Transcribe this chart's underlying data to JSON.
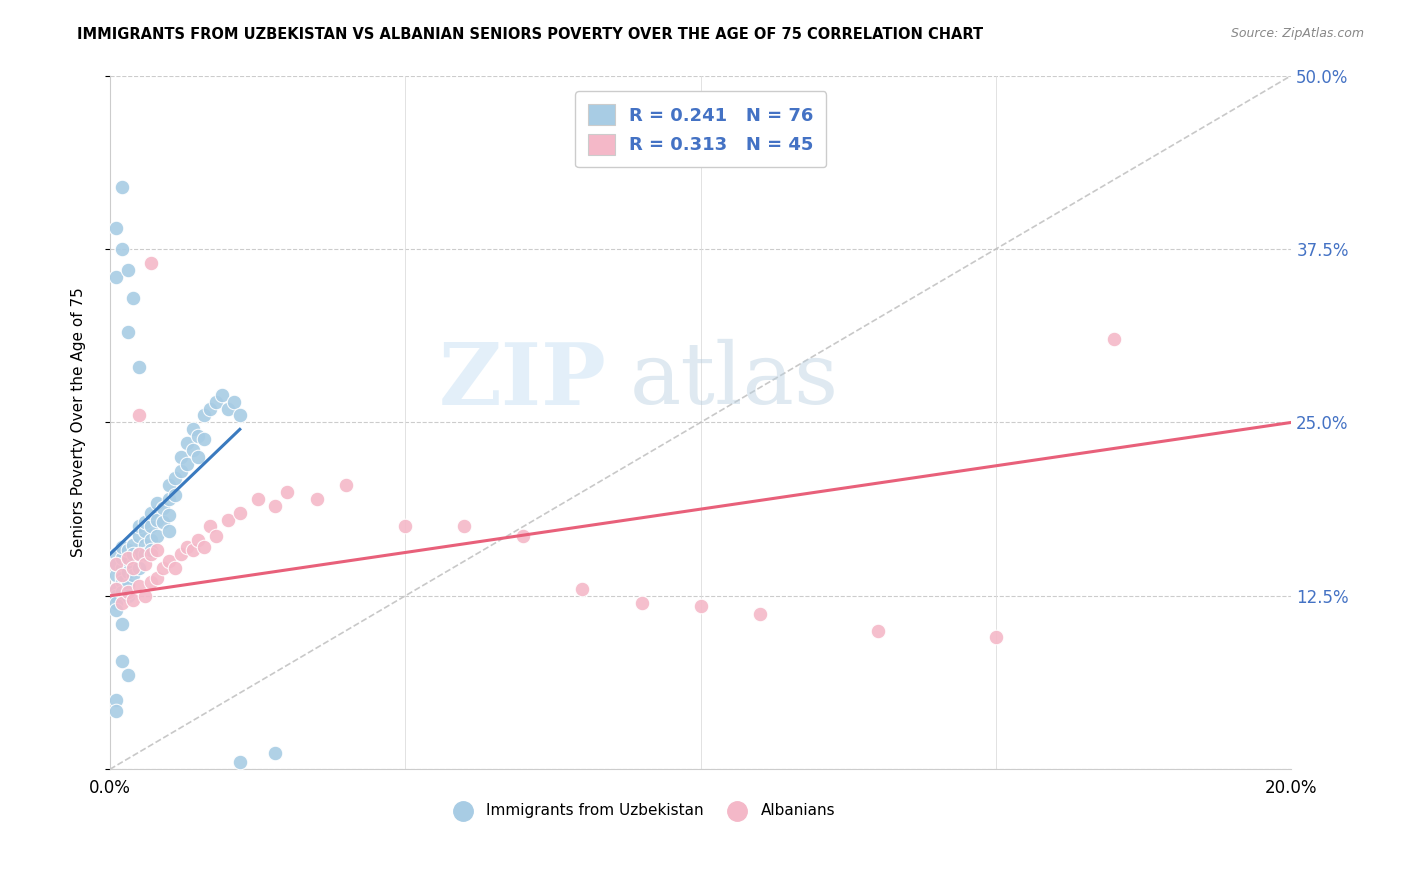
{
  "title": "IMMIGRANTS FROM UZBEKISTAN VS ALBANIAN SENIORS POVERTY OVER THE AGE OF 75 CORRELATION CHART",
  "source": "Source: ZipAtlas.com",
  "ylabel": "Seniors Poverty Over the Age of 75",
  "xlim": [
    0.0,
    0.2
  ],
  "ylim": [
    0.0,
    0.5
  ],
  "yticks": [
    0.0,
    0.125,
    0.25,
    0.375,
    0.5
  ],
  "xticks": [
    0.0,
    0.2
  ],
  "R_uzbek": 0.241,
  "N_uzbek": 76,
  "R_albanian": 0.313,
  "N_albanian": 45,
  "color_uzbek": "#a8cce4",
  "color_albanian": "#f4b8c8",
  "color_uzbek_line": "#3a7abf",
  "color_albanian_line": "#e8607a",
  "color_diagonal": "#bbbbbb",
  "color_right_axis": "#4472c4",
  "uzbek_x": [
    0.001,
    0.001,
    0.001,
    0.001,
    0.001,
    0.001,
    0.002,
    0.002,
    0.002,
    0.002,
    0.002,
    0.002,
    0.003,
    0.003,
    0.003,
    0.003,
    0.003,
    0.004,
    0.004,
    0.004,
    0.004,
    0.005,
    0.005,
    0.005,
    0.005,
    0.006,
    0.006,
    0.006,
    0.006,
    0.007,
    0.007,
    0.007,
    0.007,
    0.008,
    0.008,
    0.008,
    0.009,
    0.009,
    0.01,
    0.01,
    0.01,
    0.01,
    0.011,
    0.011,
    0.012,
    0.012,
    0.013,
    0.013,
    0.014,
    0.014,
    0.015,
    0.015,
    0.016,
    0.016,
    0.017,
    0.018,
    0.019,
    0.02,
    0.021,
    0.022,
    0.001,
    0.001,
    0.002,
    0.002,
    0.003,
    0.003,
    0.004,
    0.005,
    0.001,
    0.001,
    0.028,
    0.022,
    0.001,
    0.002,
    0.003,
    0.002
  ],
  "uzbek_y": [
    0.155,
    0.14,
    0.148,
    0.13,
    0.125,
    0.12,
    0.145,
    0.138,
    0.152,
    0.16,
    0.135,
    0.128,
    0.15,
    0.142,
    0.158,
    0.133,
    0.125,
    0.162,
    0.148,
    0.155,
    0.14,
    0.168,
    0.155,
    0.175,
    0.145,
    0.172,
    0.162,
    0.178,
    0.155,
    0.165,
    0.175,
    0.158,
    0.185,
    0.18,
    0.168,
    0.192,
    0.188,
    0.178,
    0.195,
    0.183,
    0.205,
    0.172,
    0.21,
    0.198,
    0.215,
    0.225,
    0.22,
    0.235,
    0.23,
    0.245,
    0.225,
    0.24,
    0.238,
    0.255,
    0.26,
    0.265,
    0.27,
    0.26,
    0.265,
    0.255,
    0.39,
    0.355,
    0.42,
    0.375,
    0.315,
    0.36,
    0.34,
    0.29,
    0.05,
    0.042,
    0.012,
    0.005,
    0.115,
    0.105,
    0.068,
    0.078
  ],
  "albanian_x": [
    0.001,
    0.001,
    0.002,
    0.002,
    0.003,
    0.003,
    0.004,
    0.004,
    0.005,
    0.005,
    0.006,
    0.006,
    0.007,
    0.007,
    0.008,
    0.008,
    0.009,
    0.01,
    0.011,
    0.012,
    0.013,
    0.014,
    0.015,
    0.016,
    0.017,
    0.018,
    0.02,
    0.022,
    0.025,
    0.028,
    0.03,
    0.035,
    0.04,
    0.05,
    0.06,
    0.07,
    0.08,
    0.09,
    0.1,
    0.11,
    0.13,
    0.15,
    0.17,
    0.005,
    0.007
  ],
  "albanian_y": [
    0.148,
    0.13,
    0.14,
    0.12,
    0.152,
    0.128,
    0.145,
    0.122,
    0.155,
    0.132,
    0.148,
    0.125,
    0.155,
    0.135,
    0.158,
    0.138,
    0.145,
    0.15,
    0.145,
    0.155,
    0.16,
    0.158,
    0.165,
    0.16,
    0.175,
    0.168,
    0.18,
    0.185,
    0.195,
    0.19,
    0.2,
    0.195,
    0.205,
    0.175,
    0.175,
    0.168,
    0.13,
    0.12,
    0.118,
    0.112,
    0.1,
    0.095,
    0.31,
    0.255,
    0.365
  ],
  "uzbek_line_x": [
    0.0,
    0.022
  ],
  "uzbek_line_y": [
    0.155,
    0.245
  ],
  "albanian_line_x": [
    0.0,
    0.2
  ],
  "albanian_line_y": [
    0.125,
    0.25
  ]
}
